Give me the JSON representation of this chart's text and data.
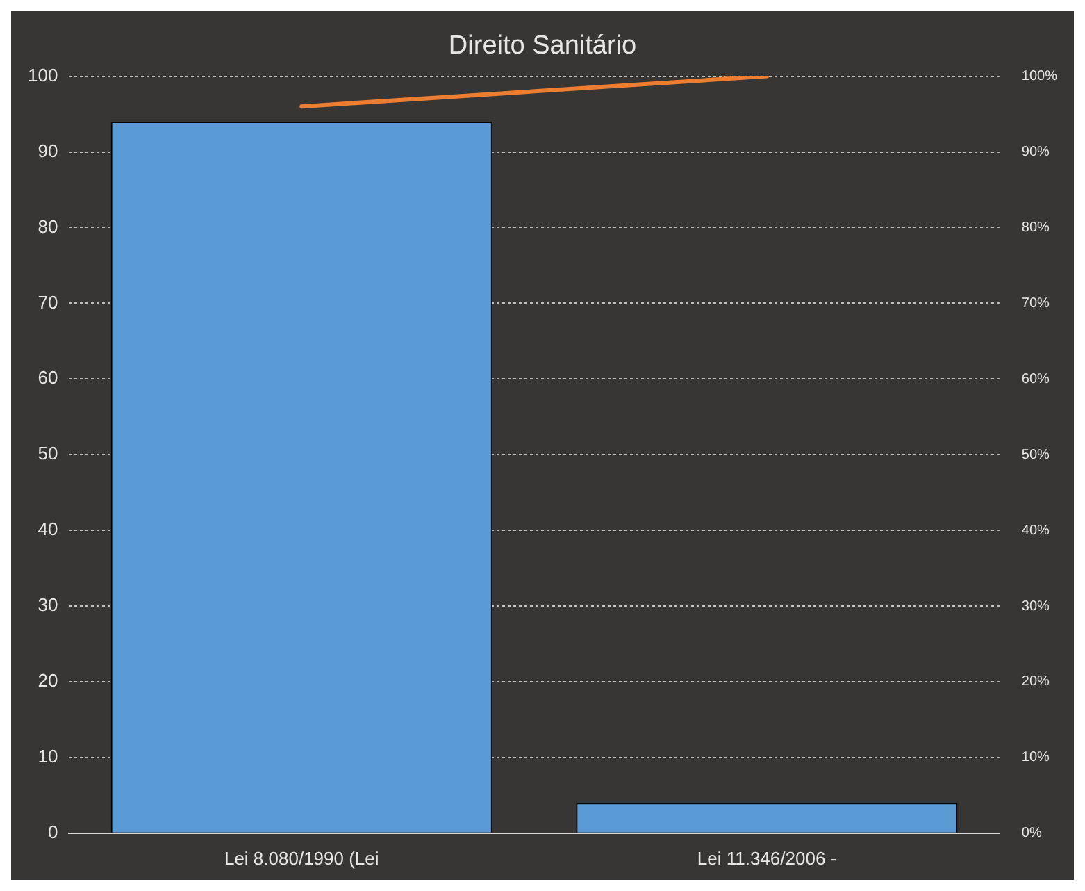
{
  "chart_data": {
    "type": "bar",
    "title": "Direito Sanitário",
    "categories": [
      "Lei 8.080/1990 (Lei",
      "Lei 11.346/2006 -"
    ],
    "series": [
      {
        "color": "#5b9bd5",
        "values": [
          94,
          4
        ]
      },
      {
        "type": "line",
        "color": "#ed7d31",
        "axis": "y2",
        "values": [
          96,
          100
        ]
      }
    ],
    "ylim": [
      0,
      100
    ],
    "yticks": [
      0,
      10,
      20,
      30,
      40,
      50,
      60,
      70,
      80,
      90,
      100
    ],
    "y2lim": [
      0,
      100
    ],
    "y2ticks": [
      {
        "value": 0,
        "label": "0%"
      },
      {
        "value": 10,
        "label": "10%"
      },
      {
        "value": 20,
        "label": "20%"
      },
      {
        "value": 30,
        "label": "30%"
      },
      {
        "value": 40,
        "label": "40%"
      },
      {
        "value": 50,
        "label": "50%"
      },
      {
        "value": 60,
        "label": "60%"
      },
      {
        "value": 70,
        "label": "70%"
      },
      {
        "value": 80,
        "label": "80%"
      },
      {
        "value": 90,
        "label": "90%"
      },
      {
        "value": 100,
        "label": "100%"
      }
    ],
    "grid": "y",
    "marker": "none"
  }
}
